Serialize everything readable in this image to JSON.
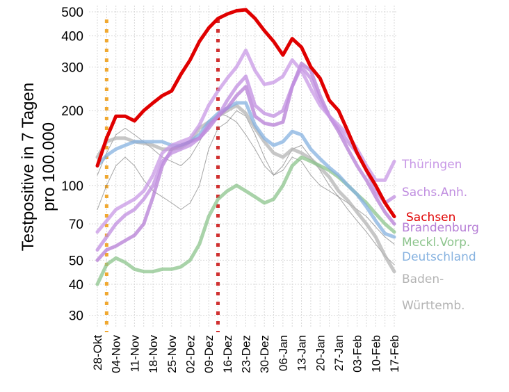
{
  "chart_data": {
    "type": "line",
    "ylabel": [
      "Testpositive in 7 Tagen",
      "pro 100.000"
    ],
    "log_scale": true,
    "grid": true,
    "ylim": [
      27,
      530
    ],
    "yticks": [
      30,
      40,
      50,
      70,
      100,
      200,
      300,
      400,
      500
    ],
    "categories": [
      "28-Okt",
      null,
      "04-Nov",
      null,
      "11-Nov",
      null,
      "18-Nov",
      null,
      "25-Nov",
      null,
      "02-Dez",
      null,
      "09-Dez",
      null,
      "16-Dez",
      null,
      "23-Dez",
      null,
      "30-Dez",
      null,
      "06-Jan",
      null,
      "13-Jan",
      null,
      "20-Jan",
      null,
      "27-Jan",
      null,
      "03-Feb",
      null,
      "10-Feb",
      null,
      "17-Feb"
    ],
    "vlines": [
      {
        "index": 1,
        "color": "#f0a830"
      },
      {
        "index": 13,
        "color": "#d03030"
      }
    ],
    "series": [
      {
        "values": [
          110,
          135,
          160,
          170,
          160,
          150,
          140,
          130,
          125,
          120,
          130,
          150,
          175,
          195,
          190,
          180,
          160,
          140,
          120,
          110,
          115,
          130,
          125,
          110,
          100,
          95,
          90,
          85,
          80,
          75,
          68,
          62,
          58
        ],
        "color": "#6a6a6a"
      },
      {
        "values": [
          80,
          100,
          120,
          130,
          120,
          105,
          95,
          90,
          85,
          80,
          85,
          100,
          140,
          170,
          180,
          200,
          190,
          160,
          130,
          110,
          120,
          140,
          145,
          130,
          115,
          100,
          90,
          80,
          72,
          65,
          58,
          52,
          48
        ],
        "color": "#6a6a6a"
      },
      {
        "name": "Baden-\nWürttemb.",
        "color": "#b4b4b4",
        "values": [
          130,
          150,
          155,
          155,
          150,
          148,
          145,
          140,
          140,
          142,
          150,
          170,
          180,
          190,
          200,
          210,
          195,
          170,
          150,
          135,
          130,
          140,
          135,
          128,
          118,
          108,
          95,
          87,
          78,
          70,
          62,
          52,
          45
        ]
      },
      {
        "name": "Meckl.Vorp.",
        "color": "#8cc48c",
        "values": [
          40,
          48,
          51,
          49,
          46,
          45,
          45,
          46,
          46,
          47,
          50,
          58,
          75,
          88,
          95,
          100,
          95,
          90,
          85,
          88,
          100,
          120,
          130,
          125,
          120,
          115,
          108,
          100,
          92,
          85,
          77,
          70,
          65
        ]
      },
      {
        "name": "Deutschland",
        "color": "#86b2e0",
        "values": [
          120,
          132,
          140,
          145,
          150,
          150,
          150,
          150,
          145,
          145,
          150,
          160,
          180,
          195,
          205,
          215,
          215,
          175,
          155,
          145,
          150,
          165,
          160,
          140,
          128,
          118,
          110,
          100,
          92,
          82,
          72,
          64,
          62
        ]
      },
      {
        "name": "Brandenburg",
        "color": "#b67ed6",
        "values": [
          50,
          55,
          57,
          60,
          63,
          70,
          90,
          120,
          140,
          145,
          150,
          155,
          170,
          190,
          205,
          230,
          250,
          190,
          178,
          175,
          180,
          250,
          310,
          290,
          230,
          190,
          165,
          140,
          120,
          105,
          90,
          78,
          70
        ]
      },
      {
        "name": "Sachs.Anh.",
        "color": "#c08ee0",
        "values": [
          55,
          62,
          70,
          76,
          80,
          88,
          100,
          125,
          135,
          140,
          145,
          155,
          175,
          190,
          220,
          250,
          275,
          210,
          195,
          190,
          200,
          250,
          300,
          270,
          220,
          190,
          170,
          150,
          135,
          115,
          95,
          85,
          90
        ]
      },
      {
        "name": "Thüringen",
        "color": "#c898e6",
        "values": [
          65,
          72,
          80,
          84,
          88,
          95,
          110,
          135,
          145,
          150,
          155,
          175,
          210,
          240,
          270,
          300,
          350,
          290,
          255,
          260,
          275,
          320,
          290,
          245,
          210,
          190,
          175,
          160,
          140,
          120,
          105,
          105,
          125
        ]
      },
      {
        "name": "Sachsen",
        "color": "#e00000",
        "values": [
          120,
          155,
          190,
          190,
          182,
          200,
          215,
          230,
          240,
          280,
          320,
          380,
          430,
          470,
          490,
          505,
          510,
          470,
          420,
          380,
          335,
          390,
          360,
          300,
          270,
          220,
          200,
          165,
          135,
          115,
          100,
          85,
          75
        ]
      }
    ]
  }
}
